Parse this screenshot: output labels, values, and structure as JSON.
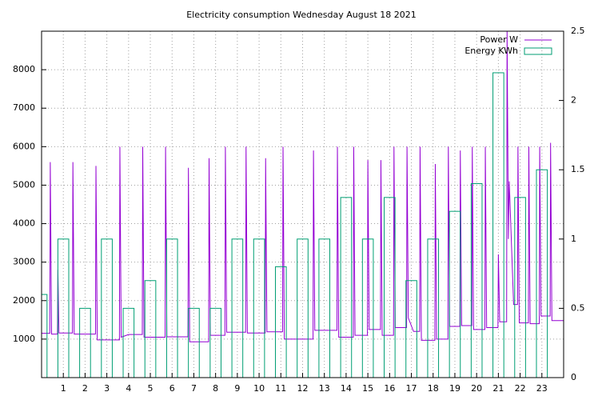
{
  "chart_data": {
    "type": "line",
    "title": "Electricity consumption Wednesday August 18 2021",
    "xlim": [
      0,
      24
    ],
    "xticks": [
      1,
      2,
      3,
      4,
      5,
      6,
      7,
      8,
      9,
      10,
      11,
      12,
      13,
      14,
      15,
      16,
      17,
      18,
      19,
      20,
      21,
      22,
      23
    ],
    "ylim": [
      0,
      9000
    ],
    "yticks": [
      1000,
      2000,
      3000,
      4000,
      5000,
      6000,
      7000,
      8000
    ],
    "y2lim": [
      0,
      2.5
    ],
    "y2ticks": [
      0,
      0.5,
      1,
      1.5,
      2,
      2.5
    ],
    "grid": true,
    "legend": "top-right",
    "series": [
      {
        "name": "Power W",
        "color": "#9400d3",
        "type": "line",
        "x": [
          0,
          0.38,
          0.4,
          0.46,
          0.73,
          0.75,
          0.8,
          1.42,
          1.44,
          1.5,
          2.48,
          2.5,
          2.56,
          3.58,
          3.6,
          3.66,
          4.0,
          4.63,
          4.65,
          4.71,
          5.68,
          5.7,
          5.76,
          6.73,
          6.75,
          6.81,
          7.68,
          7.7,
          7.76,
          8.43,
          8.45,
          8.51,
          9.38,
          9.4,
          9.46,
          10.28,
          10.3,
          10.36,
          11.08,
          11.1,
          11.16,
          12.48,
          12.5,
          12.56,
          13.58,
          13.6,
          13.66,
          14.33,
          14.35,
          14.41,
          14.98,
          15.0,
          15.06,
          15.58,
          15.6,
          15.66,
          16.18,
          16.2,
          16.26,
          16.78,
          16.8,
          16.86,
          17.1,
          17.38,
          17.4,
          17.46,
          18.08,
          18.1,
          18.16,
          18.68,
          18.7,
          18.76,
          19.23,
          19.25,
          19.31,
          19.78,
          19.8,
          19.86,
          20.38,
          20.4,
          20.46,
          20.98,
          21.0,
          21.06,
          21.38,
          21.4,
          21.46,
          21.5,
          21.7,
          21.88,
          21.9,
          21.96,
          22.38,
          22.4,
          22.46,
          22.88,
          22.9,
          22.96,
          23.38,
          23.4,
          23.46,
          24
        ],
        "values": [
          1150,
          1150,
          5600,
          1130,
          1130,
          2800,
          1160,
          1160,
          5600,
          1130,
          1130,
          5500,
          980,
          980,
          6000,
          1050,
          1120,
          1120,
          6000,
          1050,
          1050,
          6000,
          1060,
          1060,
          5450,
          930,
          930,
          5700,
          1100,
          1100,
          6000,
          1180,
          1180,
          6000,
          1160,
          1160,
          5700,
          1190,
          1190,
          6000,
          1000,
          1000,
          5900,
          1230,
          1230,
          6000,
          1050,
          1050,
          6000,
          1100,
          1100,
          5650,
          1250,
          1250,
          5650,
          1100,
          1100,
          6000,
          1300,
          1300,
          6000,
          1550,
          1200,
          1200,
          6000,
          970,
          970,
          5550,
          1000,
          1000,
          6000,
          1330,
          1330,
          5900,
          1350,
          1350,
          6000,
          1250,
          1250,
          6000,
          1300,
          1300,
          3200,
          1450,
          1450,
          9000,
          3600,
          5100,
          1900,
          1900,
          6000,
          1420,
          1420,
          6000,
          1400,
          1400,
          6000,
          1600,
          1600,
          6100,
          1480,
          1480
        ]
      },
      {
        "name": "Energy KWh",
        "color": "#009e73",
        "type": "boxes",
        "axis": "y2",
        "x": [
          0,
          1,
          2,
          3,
          4,
          5,
          6,
          7,
          8,
          9,
          10,
          11,
          12,
          13,
          14,
          15,
          16,
          17,
          18,
          19,
          20,
          21,
          22,
          23
        ],
        "values": [
          0.6,
          1.0,
          0.5,
          1.0,
          0.5,
          0.7,
          1.0,
          0.5,
          0.5,
          1.0,
          1.0,
          0.8,
          1.0,
          1.0,
          1.3,
          1.0,
          1.3,
          0.7,
          1.0,
          1.2,
          1.4,
          2.2,
          1.3,
          1.5
        ]
      }
    ]
  }
}
